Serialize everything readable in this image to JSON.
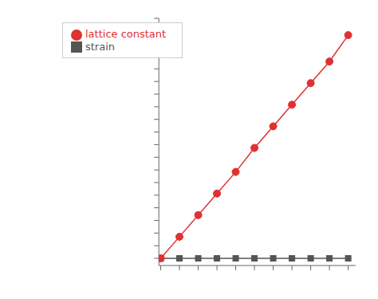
{
  "chart_data": {
    "type": "line",
    "x": [
      0,
      0.1,
      0.2,
      0.3,
      0.4,
      0.5,
      0.6,
      0.7,
      0.8,
      0.9,
      1.0
    ],
    "series": [
      {
        "name": "strain",
        "color": "#555555",
        "marker": "square",
        "values": [
          0.0,
          0.0,
          0.0,
          0.0,
          0.0,
          0.0,
          0.0,
          0.0,
          0.0,
          0.0,
          0.0
        ]
      },
      {
        "name": "lattice constant",
        "color": "#e03030",
        "marker": "circle",
        "values": [
          0.0,
          0.09,
          0.18,
          0.27,
          0.36,
          0.46,
          0.55,
          0.64,
          0.73,
          0.82,
          0.93
        ]
      }
    ],
    "xlim": [
      -0.01,
      1.04
    ],
    "ylim": [
      -0.03,
      1.0
    ],
    "xticks": [
      0,
      0.1,
      0.2,
      0.3,
      0.4,
      0.5,
      0.6,
      0.7,
      0.8,
      0.9,
      1.0
    ],
    "yticks": [
      0,
      0.05263157894736842,
      0.10526315789473684,
      0.15789473684210525,
      0.21052631578947367,
      0.2631578947368421,
      0.3157894736842105,
      0.3684210526315789,
      0.42105263157894735,
      0.47368421052631576,
      0.5263157894736842,
      0.5789473684210527,
      0.631578947368421,
      0.6842105263157894,
      0.7368421052631579,
      0.7894736842105263,
      0.8421052631578947,
      0.894736842105263,
      0.9473684210526315,
      1.0
    ],
    "tick_labels": false,
    "grid": false,
    "legend": "upper left"
  }
}
